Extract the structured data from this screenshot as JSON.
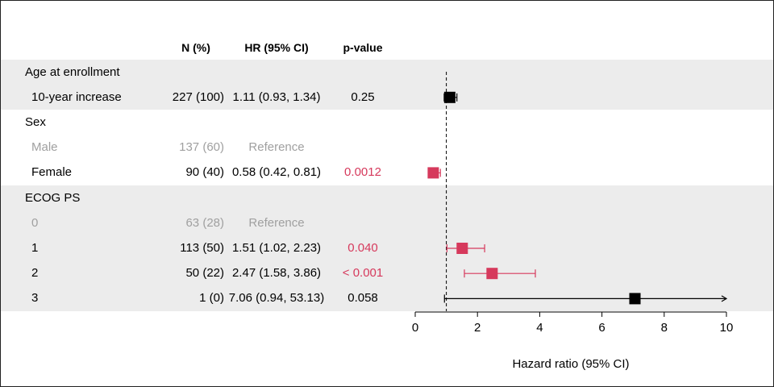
{
  "colors": {
    "band": "#ececec",
    "significant": "#d6395c",
    "reference": "#a0a0a0",
    "normal": "#000000"
  },
  "header": {
    "n": "N (%)",
    "hr": "HR (95% CI)",
    "p": "p-value"
  },
  "chart_data": {
    "type": "forest",
    "xlabel": "Hazard ratio (95% CI)",
    "xlim": [
      0,
      10
    ],
    "xticks": [
      0,
      2,
      4,
      6,
      8,
      10
    ],
    "reference_line": 1,
    "grid": false,
    "groups": [
      {
        "label": "Age at enrollment",
        "rows": [
          {
            "label": "10-year increase",
            "n": "227 (100)",
            "hr_text": "1.11 (0.93, 1.34)",
            "p": "0.25",
            "hr": 1.11,
            "lo": 0.93,
            "hi": 1.34,
            "significant": false,
            "reference": false
          }
        ]
      },
      {
        "label": "Sex",
        "rows": [
          {
            "label": "Male",
            "n": "137 (60)",
            "hr_text": "Reference",
            "p": "",
            "hr": null,
            "lo": null,
            "hi": null,
            "significant": false,
            "reference": true
          },
          {
            "label": "Female",
            "n": "90 (40)",
            "hr_text": "0.58 (0.42, 0.81)",
            "p": "0.0012",
            "hr": 0.58,
            "lo": 0.42,
            "hi": 0.81,
            "significant": true,
            "reference": false
          }
        ]
      },
      {
        "label": "ECOG PS",
        "rows": [
          {
            "label": "0",
            "n": "63 (28)",
            "hr_text": "Reference",
            "p": "",
            "hr": null,
            "lo": null,
            "hi": null,
            "significant": false,
            "reference": true
          },
          {
            "label": "1",
            "n": "113 (50)",
            "hr_text": "1.51 (1.02, 2.23)",
            "p": "0.040",
            "hr": 1.51,
            "lo": 1.02,
            "hi": 2.23,
            "significant": true,
            "reference": false
          },
          {
            "label": "2",
            "n": "50 (22)",
            "hr_text": "2.47 (1.58, 3.86)",
            "p": "< 0.001",
            "hr": 2.47,
            "lo": 1.58,
            "hi": 3.86,
            "significant": true,
            "reference": false
          },
          {
            "label": "3",
            "n": "1 (0)",
            "hr_text": "7.06 (0.94, 53.13)",
            "p": "0.058",
            "hr": 7.06,
            "lo": 0.94,
            "hi": 53.13,
            "significant": false,
            "reference": false
          }
        ]
      }
    ]
  }
}
